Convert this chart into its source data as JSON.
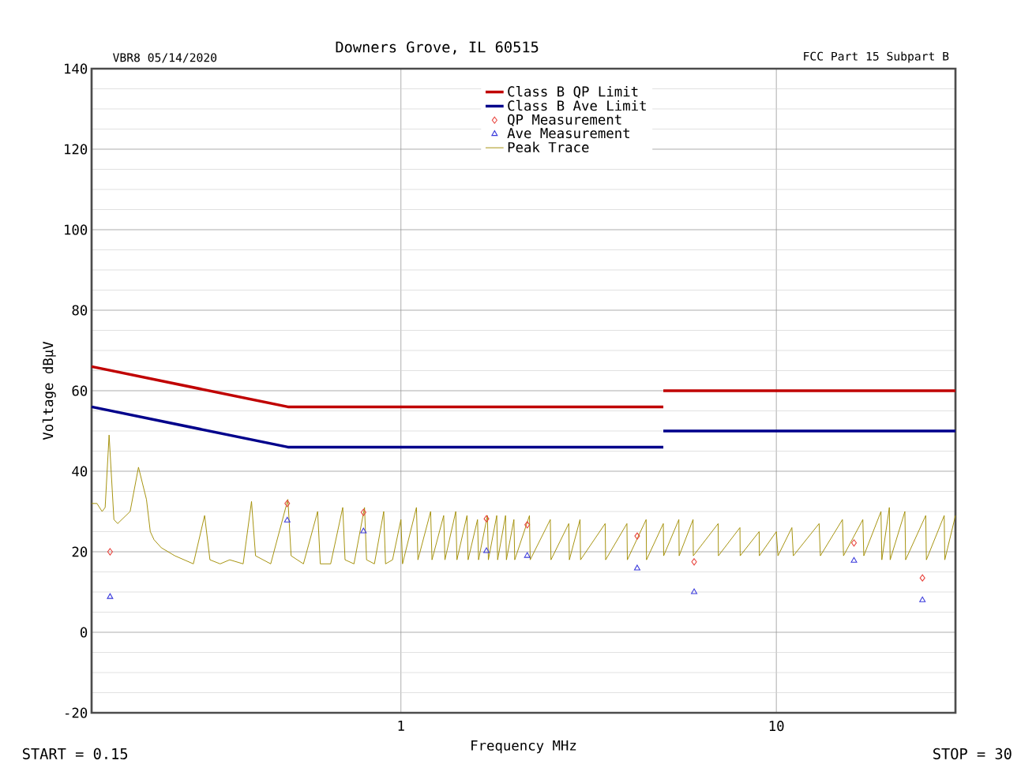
{
  "chart_data": {
    "type": "line",
    "subtitle": "Downers Grove, IL 60515",
    "xlabel": "Frequency MHz",
    "ylabel": "Voltage dBµV",
    "annotations": [
      "VBR8  05/14/2020",
      "FCC Part 15 Subpart B",
      "START = 0.15",
      "STOP = 30"
    ],
    "log": "x",
    "xlim": [
      0.15,
      30
    ],
    "ylim": [
      -20,
      140
    ],
    "xticks": [
      1,
      10
    ],
    "yticks": [
      -20,
      0,
      20,
      40,
      60,
      80,
      100,
      120,
      140
    ],
    "grid": true,
    "legend": "top",
    "series": [
      {
        "name": "Class B QP Limit",
        "type": "line",
        "color": "#c00000",
        "x": [
          0.15,
          0.5,
          5,
          null,
          5,
          30
        ],
        "values": [
          66,
          56,
          56,
          null,
          60,
          60
        ]
      },
      {
        "name": "Class B Ave Limit",
        "type": "line",
        "color": "#00008b",
        "x": [
          0.15,
          0.5,
          5,
          null,
          5,
          30
        ],
        "values": [
          56,
          46,
          46,
          null,
          50,
          50
        ]
      },
      {
        "name": "QP Measurement",
        "type": "scatter",
        "marker": "diamond",
        "color": "#e8413a",
        "x": [
          0.168,
          0.498,
          0.795,
          1.69,
          2.17,
          4.26,
          6.04,
          16.1,
          24.5
        ],
        "values": [
          20,
          32,
          29.8,
          28.2,
          26.7,
          23.9,
          17.5,
          22.2,
          13.5
        ]
      },
      {
        "name": "Ave Measurement",
        "type": "scatter",
        "marker": "triangle",
        "color": "#3a3adc",
        "x": [
          0.168,
          0.498,
          0.795,
          1.69,
          2.17,
          4.26,
          6.04,
          16.1,
          24.5
        ],
        "values": [
          8.8,
          27.8,
          25.1,
          20.2,
          19,
          15.9,
          10,
          17.8,
          8
        ]
      },
      {
        "name": "Peak Trace",
        "type": "line",
        "color": "#a08c00",
        "x": [
          0.15,
          0.155,
          0.16,
          0.163,
          0.167,
          0.172,
          0.176,
          0.19,
          0.2,
          0.21,
          0.215,
          0.22,
          0.23,
          0.25,
          0.28,
          0.3,
          0.31,
          0.33,
          0.35,
          0.38,
          0.4,
          0.41,
          0.45,
          0.5,
          0.51,
          0.55,
          0.6,
          0.61,
          0.65,
          0.7,
          0.71,
          0.75,
          0.8,
          0.81,
          0.85,
          0.9,
          0.91,
          0.95,
          1.0,
          1.01,
          1.1,
          1.11,
          1.2,
          1.21,
          1.3,
          1.31,
          1.4,
          1.41,
          1.5,
          1.51,
          1.6,
          1.61,
          1.7,
          1.71,
          1.8,
          1.81,
          1.9,
          1.91,
          2.0,
          2.01,
          2.2,
          2.21,
          2.5,
          2.51,
          2.8,
          2.81,
          3.0,
          3.01,
          3.5,
          3.51,
          4.0,
          4.01,
          4.5,
          4.51,
          5.0,
          5.01,
          5.5,
          5.51,
          6.0,
          6.01,
          7.0,
          7.01,
          8.0,
          8.01,
          9.0,
          9.01,
          10,
          10.1,
          11,
          11.1,
          13,
          13.1,
          15,
          15.1,
          17,
          17.1,
          19,
          19.1,
          20,
          20.1,
          22,
          22.1,
          25,
          25.1,
          28,
          28.1,
          30
        ],
        "values": [
          32,
          32,
          30,
          31,
          49,
          28,
          27,
          30,
          41,
          33,
          25,
          23,
          21,
          19,
          17,
          29,
          18,
          17,
          18,
          17,
          32.5,
          19,
          17,
          33,
          19,
          17,
          30,
          17,
          17,
          31,
          18,
          17,
          31,
          18,
          17,
          30,
          17,
          18,
          28,
          17,
          31,
          18,
          30,
          18,
          29,
          18,
          30,
          18,
          29,
          18,
          28,
          18,
          29,
          18,
          29,
          18,
          29,
          18,
          28,
          18,
          29,
          18,
          28,
          18,
          27,
          18,
          28,
          18,
          27,
          18,
          27,
          18,
          28,
          18,
          27,
          19,
          28,
          19,
          28,
          19,
          27,
          19,
          26,
          19,
          25,
          19,
          25,
          19,
          26,
          19,
          27,
          19,
          28,
          19,
          28,
          19,
          30,
          18,
          31,
          18,
          30,
          18,
          29,
          18,
          29,
          18,
          29
        ]
      }
    ]
  }
}
